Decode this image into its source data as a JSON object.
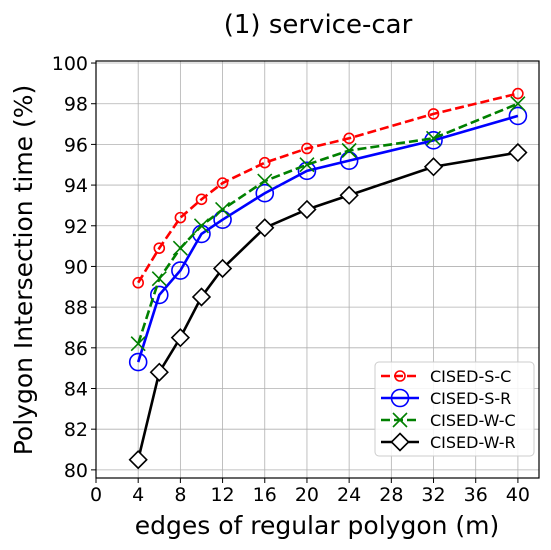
{
  "chart_data": {
    "type": "line",
    "title": "(1) service-car",
    "xlabel": "edges of regular polygon (m)",
    "ylabel": "Polygon Intersection time (%)",
    "xlim": [
      0,
      42
    ],
    "ylim": [
      79.6,
      100.1
    ],
    "xticks": [
      0,
      4,
      8,
      12,
      16,
      20,
      24,
      28,
      32,
      36,
      40
    ],
    "yticks": [
      80,
      82,
      84,
      86,
      88,
      90,
      92,
      94,
      96,
      98,
      100
    ],
    "grid": true,
    "legend_position": "lower-right",
    "x": [
      4,
      6,
      8,
      10,
      12,
      16,
      20,
      24,
      32,
      40
    ],
    "series": [
      {
        "name": "CISED-S-C",
        "color": "#ff0000",
        "dash": "dashed",
        "marker": "circle-small",
        "values": [
          89.2,
          90.9,
          92.4,
          93.3,
          94.1,
          95.1,
          95.8,
          96.3,
          97.5,
          98.5
        ]
      },
      {
        "name": "CISED-S-R",
        "color": "#0000ff",
        "dash": "solid",
        "marker": "circle-large",
        "values": [
          85.3,
          88.6,
          89.8,
          91.6,
          92.3,
          93.6,
          94.7,
          95.2,
          96.2,
          97.4
        ]
      },
      {
        "name": "CISED-W-C",
        "color": "#008000",
        "dash": "dashed",
        "marker": "x",
        "values": [
          86.2,
          89.4,
          90.9,
          92.0,
          92.8,
          94.2,
          95.0,
          95.7,
          96.3,
          98.0
        ]
      },
      {
        "name": "CISED-W-R",
        "color": "#000000",
        "dash": "solid",
        "marker": "diamond",
        "values": [
          80.5,
          84.8,
          86.5,
          88.5,
          89.9,
          91.9,
          92.8,
          93.5,
          94.9,
          95.6
        ]
      }
    ]
  }
}
